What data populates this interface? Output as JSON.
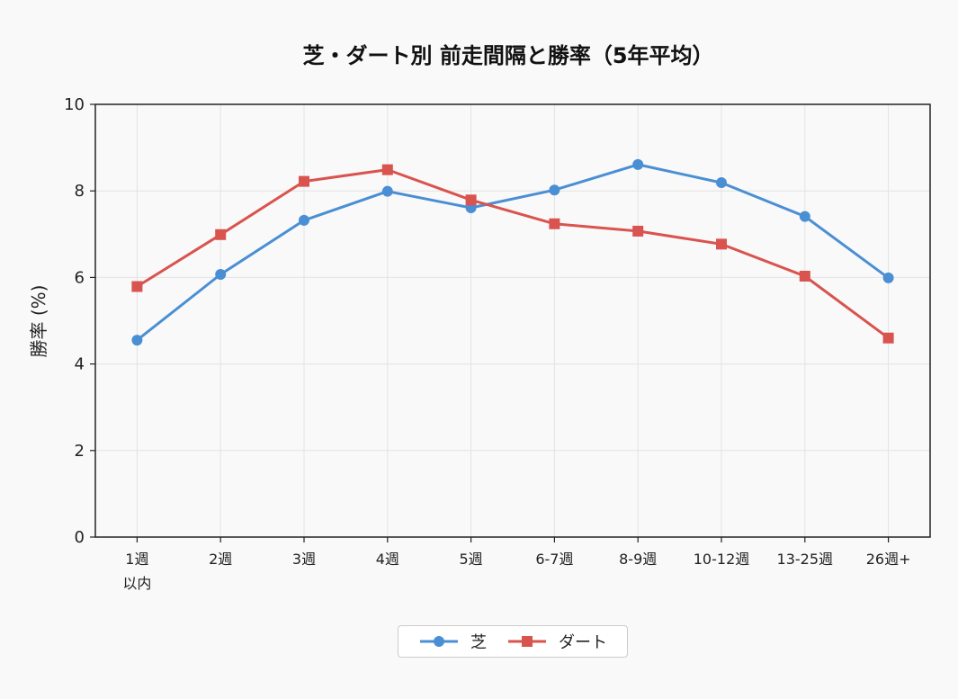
{
  "chart_data": {
    "type": "line",
    "title": "芝・ダート別 前走間隔と勝率（5年平均）",
    "ylabel": "勝率 (%)",
    "xlabel": "",
    "ylim": [
      0,
      10
    ],
    "yticks": [
      "0",
      "2",
      "4",
      "6",
      "8",
      "10"
    ],
    "categories": [
      [
        "1週",
        "以内"
      ],
      [
        "2週"
      ],
      [
        "3週"
      ],
      [
        "4週"
      ],
      [
        "5週"
      ],
      [
        "6-7週"
      ],
      [
        "8-9週"
      ],
      [
        "10-12週"
      ],
      [
        "13-25週"
      ],
      [
        "26週+"
      ]
    ],
    "grid": true,
    "legend_position": "bottom-center",
    "series": [
      {
        "name": "芝",
        "color": "#4a8fd4",
        "marker": "circle",
        "values": [
          4.55,
          6.07,
          7.32,
          7.99,
          7.61,
          8.02,
          8.61,
          8.19,
          7.41,
          5.99
        ]
      },
      {
        "name": "ダート",
        "color": "#d9534f",
        "marker": "square",
        "values": [
          5.79,
          6.99,
          8.22,
          8.49,
          7.79,
          7.24,
          7.07,
          6.77,
          6.03,
          4.6
        ]
      }
    ]
  }
}
